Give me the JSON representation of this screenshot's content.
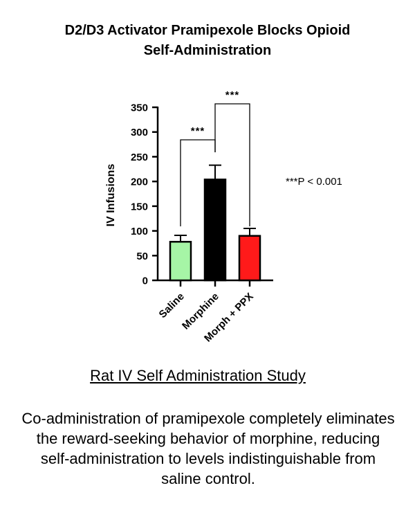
{
  "title": {
    "line1": "D2/D3 Activator Pramipexole Blocks Opioid",
    "line2": "Self-Administration"
  },
  "subtitle": "Rat IV Self Administration Study",
  "caption": "Co-administration of pramipexole completely eliminates the reward-seeking behavior of morphine, reducing self-administration to levels indistinguishable from saline control.",
  "chart_data": {
    "type": "bar",
    "ylabel": "IV Infusions",
    "xlabel": "",
    "ylim": [
      0,
      350
    ],
    "yticks": [
      0,
      50,
      100,
      150,
      200,
      250,
      300,
      350
    ],
    "categories": [
      "Saline",
      "Morphine",
      "Morph + PPX"
    ],
    "values": [
      78,
      204,
      90
    ],
    "errors": [
      13,
      29,
      15
    ],
    "colors": [
      "#a6f5a6",
      "#000000",
      "#ff1a1a"
    ],
    "significance": [
      {
        "from": 0,
        "to": 1,
        "label": "***"
      },
      {
        "from": 1,
        "to": 2,
        "label": "***"
      }
    ],
    "annotation": "***P < 0.001"
  }
}
